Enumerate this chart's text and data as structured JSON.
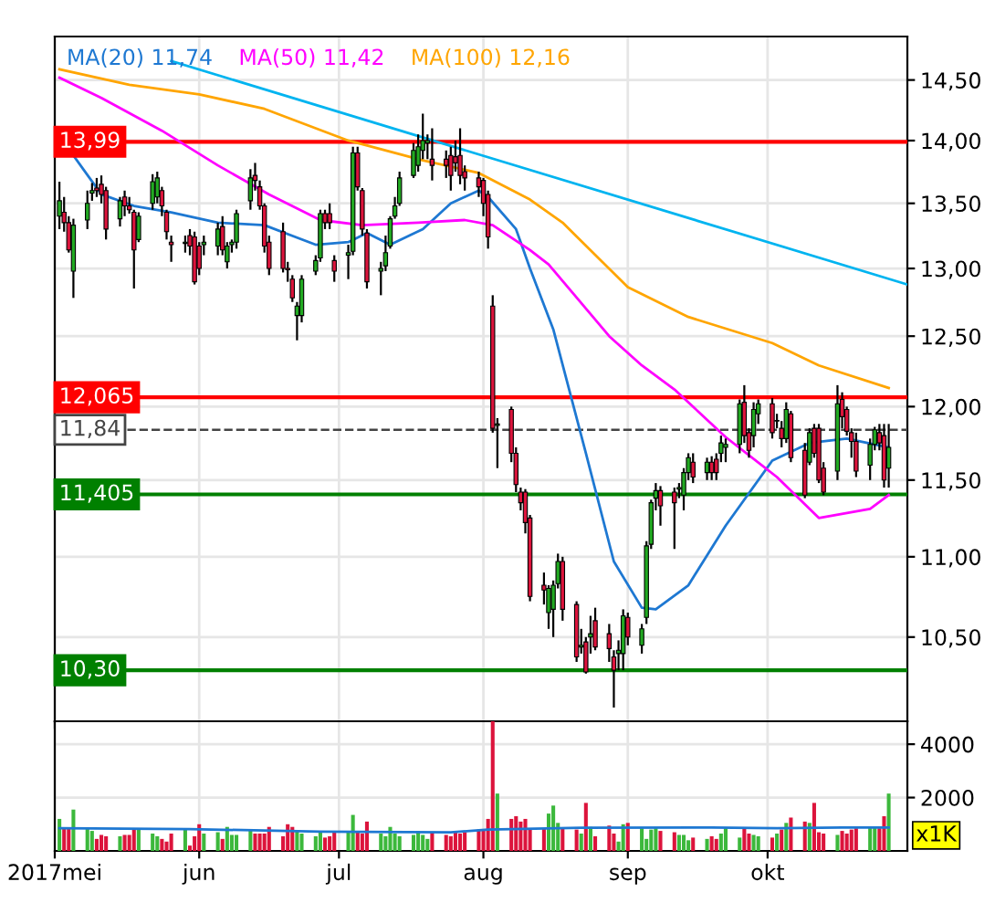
{
  "chart_data": [
    {
      "type": "candlestick",
      "log": true,
      "grid": true,
      "tick_labels": "y",
      "legend": "top left",
      "xlim": [
        "2017-05-01",
        "2017-10-31"
      ],
      "ylim": [
        10.0,
        14.87
      ],
      "xticks": [
        {
          "value": "2017-05-01",
          "label": null
        },
        {
          "value": "2017-06-01",
          "label": null
        },
        {
          "value": "2017-07-01",
          "label": null
        },
        {
          "value": "2017-08-01",
          "label": null
        },
        {
          "value": "2017-09-01",
          "label": null
        },
        {
          "value": "2017-10-01",
          "label": null
        }
      ],
      "yticks": [
        {
          "value": 10.5,
          "label": "10,50"
        },
        {
          "value": 11.0,
          "label": "11,00"
        },
        {
          "value": 11.5,
          "label": "11,50"
        },
        {
          "value": 12.0,
          "label": "12,00"
        },
        {
          "value": 12.5,
          "label": "12,50"
        },
        {
          "value": 13.0,
          "label": "13,00"
        },
        {
          "value": 13.5,
          "label": "13,50"
        },
        {
          "value": 14.0,
          "label": "14,00"
        },
        {
          "value": 14.5,
          "label": "14,50"
        }
      ],
      "x": [
        "2017-05-02",
        "2017-05-03",
        "2017-05-04",
        "2017-05-05",
        "2017-05-08",
        "2017-05-09",
        "2017-05-10",
        "2017-05-11",
        "2017-05-12",
        "2017-05-15",
        "2017-05-16",
        "2017-05-17",
        "2017-05-18",
        "2017-05-19",
        "2017-05-22",
        "2017-05-23",
        "2017-05-24",
        "2017-05-25",
        "2017-05-26",
        "2017-05-29",
        "2017-05-30",
        "2017-05-31",
        "2017-06-01",
        "2017-06-02",
        "2017-06-05",
        "2017-06-06",
        "2017-06-07",
        "2017-06-08",
        "2017-06-09",
        "2017-06-12",
        "2017-06-13",
        "2017-06-14",
        "2017-06-15",
        "2017-06-16",
        "2017-06-19",
        "2017-06-20",
        "2017-06-21",
        "2017-06-22",
        "2017-06-23",
        "2017-06-26",
        "2017-06-27",
        "2017-06-28",
        "2017-06-29",
        "2017-06-30",
        "2017-07-03",
        "2017-07-04",
        "2017-07-05",
        "2017-07-06",
        "2017-07-07",
        "2017-07-10",
        "2017-07-11",
        "2017-07-12",
        "2017-07-13",
        "2017-07-14",
        "2017-07-17",
        "2017-07-18",
        "2017-07-19",
        "2017-07-20",
        "2017-07-21",
        "2017-07-24",
        "2017-07-25",
        "2017-07-26",
        "2017-07-27",
        "2017-07-28",
        "2017-07-31",
        "2017-08-01",
        "2017-08-02",
        "2017-08-03",
        "2017-08-04",
        "2017-08-07",
        "2017-08-08",
        "2017-08-09",
        "2017-08-10",
        "2017-08-11",
        "2017-08-14",
        "2017-08-15",
        "2017-08-16",
        "2017-08-17",
        "2017-08-18",
        "2017-08-21",
        "2017-08-22",
        "2017-08-23",
        "2017-08-24",
        "2017-08-25",
        "2017-08-28",
        "2017-08-29",
        "2017-08-30",
        "2017-08-31",
        "2017-09-01",
        "2017-09-04",
        "2017-09-05",
        "2017-09-06",
        "2017-09-07",
        "2017-09-08",
        "2017-09-11",
        "2017-09-12",
        "2017-09-13",
        "2017-09-14",
        "2017-09-15",
        "2017-09-18",
        "2017-09-19",
        "2017-09-20",
        "2017-09-21",
        "2017-09-22",
        "2017-09-25",
        "2017-09-26",
        "2017-09-27",
        "2017-09-28",
        "2017-09-29",
        "2017-10-02",
        "2017-10-03",
        "2017-10-04",
        "2017-10-05",
        "2017-10-06",
        "2017-10-09",
        "2017-10-10",
        "2017-10-11",
        "2017-10-12",
        "2017-10-13",
        "2017-10-16",
        "2017-10-17",
        "2017-10-18",
        "2017-10-19",
        "2017-10-20",
        "2017-10-23",
        "2017-10-24",
        "2017-10-25",
        "2017-10-26",
        "2017-10-27"
      ],
      "ohlc": [
        [
          13.4,
          13.67,
          13.3,
          13.52
        ],
        [
          13.43,
          13.55,
          13.28,
          13.35
        ],
        [
          13.35,
          13.4,
          13.12,
          13.14
        ],
        [
          12.98,
          13.38,
          12.78,
          13.33
        ],
        [
          13.37,
          13.6,
          13.3,
          13.5
        ],
        [
          13.58,
          13.66,
          13.52,
          13.6
        ],
        [
          13.62,
          13.7,
          13.55,
          13.6
        ],
        [
          13.65,
          13.72,
          13.5,
          13.57
        ],
        [
          13.6,
          13.63,
          13.22,
          13.3
        ],
        [
          13.38,
          13.55,
          13.32,
          13.52
        ],
        [
          13.55,
          13.6,
          13.4,
          13.48
        ],
        [
          13.48,
          13.55,
          13.42,
          13.45
        ],
        [
          13.43,
          13.45,
          12.85,
          13.14
        ],
        [
          13.22,
          13.43,
          13.2,
          13.4
        ],
        [
          13.5,
          13.73,
          13.45,
          13.67
        ],
        [
          13.55,
          13.75,
          13.5,
          13.7
        ],
        [
          13.6,
          13.63,
          13.4,
          13.48
        ],
        [
          13.43,
          13.45,
          13.22,
          13.28
        ],
        [
          13.2,
          13.25,
          13.05,
          13.18
        ],
        [
          13.19,
          13.25,
          13.12,
          13.2
        ],
        [
          13.25,
          13.3,
          13.1,
          13.17
        ],
        [
          13.24,
          13.28,
          12.88,
          12.9
        ],
        [
          13.17,
          13.2,
          12.95,
          13.0
        ],
        [
          13.18,
          13.25,
          13.1,
          13.2
        ],
        [
          13.17,
          13.35,
          13.1,
          13.3
        ],
        [
          13.32,
          13.4,
          13.1,
          13.14
        ],
        [
          13.05,
          13.2,
          13.0,
          13.17
        ],
        [
          13.18,
          13.22,
          13.12,
          13.2
        ],
        [
          13.2,
          13.45,
          13.15,
          13.42
        ],
        [
          13.52,
          13.77,
          13.45,
          13.7
        ],
        [
          13.72,
          13.82,
          13.6,
          13.68
        ],
        [
          13.63,
          13.68,
          13.45,
          13.48
        ],
        [
          13.48,
          13.5,
          13.12,
          13.17
        ],
        [
          13.2,
          13.25,
          12.95,
          13.0
        ],
        [
          13.28,
          13.35,
          12.97,
          13.0
        ],
        [
          13.0,
          13.05,
          12.9,
          12.99
        ],
        [
          12.92,
          12.95,
          12.75,
          12.78
        ],
        [
          12.65,
          12.75,
          12.47,
          12.72
        ],
        [
          12.65,
          12.95,
          12.6,
          12.92
        ],
        [
          12.98,
          13.1,
          12.95,
          13.06
        ],
        [
          13.08,
          13.45,
          13.05,
          13.42
        ],
        [
          13.42,
          13.45,
          13.3,
          13.35
        ],
        [
          13.42,
          13.5,
          13.3,
          13.35
        ],
        [
          13.06,
          13.1,
          12.9,
          12.98
        ],
        [
          13.1,
          13.18,
          12.92,
          13.12
        ],
        [
          13.13,
          13.95,
          13.1,
          13.9
        ],
        [
          13.9,
          13.95,
          13.6,
          13.63
        ],
        [
          13.6,
          13.62,
          13.25,
          13.3
        ],
        [
          13.27,
          13.3,
          12.85,
          12.9
        ],
        [
          12.98,
          13.05,
          12.8,
          13.0
        ],
        [
          13.02,
          13.25,
          12.98,
          13.12
        ],
        [
          13.17,
          13.4,
          13.15,
          13.38
        ],
        [
          13.4,
          13.55,
          13.38,
          13.48
        ],
        [
          13.5,
          13.75,
          13.48,
          13.7
        ],
        [
          13.72,
          13.98,
          13.7,
          13.92
        ],
        [
          13.8,
          14.05,
          13.75,
          13.95
        ],
        [
          13.92,
          14.22,
          13.85,
          14.0
        ],
        [
          13.98,
          14.05,
          13.85,
          14.0
        ],
        [
          13.85,
          14.1,
          13.68,
          13.8
        ],
        [
          13.85,
          13.92,
          13.7,
          13.8
        ],
        [
          13.88,
          13.95,
          13.6,
          13.72
        ],
        [
          13.87,
          14.0,
          13.75,
          13.82
        ],
        [
          13.88,
          14.1,
          13.65,
          13.72
        ],
        [
          13.75,
          13.8,
          13.6,
          13.7
        ],
        [
          13.7,
          13.75,
          13.55,
          13.63
        ],
        [
          13.68,
          13.7,
          13.4,
          13.5
        ],
        [
          13.57,
          13.6,
          13.15,
          13.24
        ],
        [
          12.72,
          12.8,
          11.82,
          11.85
        ],
        [
          11.87,
          11.92,
          11.58,
          11.88
        ],
        [
          11.98,
          12.0,
          11.62,
          11.68
        ],
        [
          11.68,
          11.72,
          11.42,
          11.47
        ],
        [
          11.42,
          11.45,
          11.3,
          11.35
        ],
        [
          11.42,
          11.44,
          11.15,
          11.22
        ],
        [
          11.25,
          11.27,
          10.72,
          10.75
        ],
        [
          10.82,
          10.9,
          10.7,
          10.79
        ],
        [
          10.65,
          10.82,
          10.55,
          10.8
        ],
        [
          10.67,
          10.85,
          10.5,
          10.82
        ],
        [
          10.83,
          11.02,
          10.8,
          10.97
        ],
        [
          10.97,
          11.0,
          10.6,
          10.67
        ],
        [
          10.7,
          10.72,
          10.35,
          10.38
        ],
        [
          10.44,
          10.55,
          10.4,
          10.45
        ],
        [
          10.47,
          10.5,
          10.28,
          10.29
        ],
        [
          10.5,
          10.63,
          10.4,
          10.52
        ],
        [
          10.6,
          10.68,
          10.42,
          10.44
        ],
        [
          10.52,
          10.58,
          10.35,
          10.43
        ],
        [
          10.38,
          10.42,
          10.08,
          10.3
        ],
        [
          10.4,
          10.48,
          10.3,
          10.42
        ],
        [
          10.4,
          10.67,
          10.3,
          10.63
        ],
        [
          10.62,
          10.65,
          10.45,
          10.5
        ],
        [
          10.45,
          10.58,
          10.4,
          10.55
        ],
        [
          10.62,
          11.1,
          10.58,
          11.07
        ],
        [
          11.08,
          11.37,
          11.05,
          11.35
        ],
        [
          11.38,
          11.48,
          11.3,
          11.43
        ],
        [
          11.43,
          11.46,
          11.2,
          11.33
        ],
        [
          11.42,
          11.45,
          11.05,
          11.35
        ],
        [
          11.44,
          11.48,
          11.38,
          11.45
        ],
        [
          11.4,
          11.58,
          11.3,
          11.55
        ],
        [
          11.55,
          11.68,
          11.5,
          11.65
        ],
        [
          11.62,
          11.68,
          11.48,
          11.52
        ],
        [
          11.55,
          11.65,
          11.5,
          11.62
        ],
        [
          11.62,
          11.66,
          11.5,
          11.55
        ],
        [
          11.64,
          11.68,
          11.5,
          11.55
        ],
        [
          11.68,
          11.8,
          11.62,
          11.75
        ],
        [
          11.72,
          11.78,
          11.62,
          11.74
        ],
        [
          11.74,
          12.05,
          11.68,
          12.02
        ],
        [
          12.03,
          12.15,
          11.75,
          11.8
        ],
        [
          11.82,
          11.85,
          11.65,
          11.7
        ],
        [
          11.8,
          12.03,
          11.72,
          11.98
        ],
        [
          11.95,
          12.05,
          11.88,
          12.02
        ],
        [
          12.02,
          12.06,
          11.78,
          11.82
        ],
        [
          11.9,
          11.95,
          11.85,
          11.9
        ],
        [
          11.85,
          11.9,
          11.72,
          11.78
        ],
        [
          11.78,
          12.03,
          11.75,
          11.98
        ],
        [
          11.95,
          11.97,
          11.62,
          11.65
        ],
        [
          11.7,
          11.75,
          11.38,
          11.4
        ],
        [
          11.62,
          11.85,
          11.6,
          11.82
        ],
        [
          11.85,
          11.88,
          11.65,
          11.68
        ],
        [
          11.85,
          11.88,
          11.48,
          11.5
        ],
        [
          11.58,
          11.62,
          11.4,
          11.42
        ],
        [
          11.56,
          12.15,
          11.5,
          12.02
        ],
        [
          12.05,
          12.1,
          11.85,
          11.93
        ],
        [
          11.98,
          12.0,
          11.8,
          11.83
        ],
        [
          11.82,
          11.85,
          11.65,
          11.76
        ],
        [
          11.76,
          11.82,
          11.52,
          11.56
        ],
        [
          11.6,
          11.78,
          11.5,
          11.74
        ],
        [
          11.74,
          11.86,
          11.7,
          11.84
        ],
        [
          11.82,
          11.88,
          11.7,
          11.75
        ],
        [
          11.8,
          11.88,
          11.45,
          11.5
        ],
        [
          11.58,
          11.88,
          11.45,
          11.72
        ]
      ],
      "series": [
        {
          "type": "line",
          "name": "MA(20) 11,74",
          "color": "#1e78d2",
          "x": [
            "2017-05-05",
            "2017-05-11",
            "2017-05-18",
            "2017-05-26",
            "2017-06-05",
            "2017-06-15",
            "2017-06-26",
            "2017-07-03",
            "2017-07-07",
            "2017-07-12",
            "2017-07-19",
            "2017-07-25",
            "2017-07-31",
            "2017-08-02",
            "2017-08-08",
            "2017-08-11",
            "2017-08-16",
            "2017-08-23",
            "2017-08-29",
            "2017-09-04",
            "2017-09-07",
            "2017-09-14",
            "2017-09-22",
            "2017-10-02",
            "2017-10-10",
            "2017-10-18",
            "2017-10-27"
          ],
          "values": [
            13.88,
            13.57,
            13.48,
            13.43,
            13.35,
            13.33,
            13.18,
            13.2,
            13.27,
            13.18,
            13.3,
            13.5,
            13.6,
            13.55,
            13.3,
            13.0,
            12.55,
            11.68,
            10.97,
            10.68,
            10.67,
            10.82,
            11.2,
            11.63,
            11.75,
            11.78,
            11.72
          ]
        },
        {
          "type": "line",
          "name": "MA(50) 11,42",
          "color": "#ff00ff",
          "x": [
            "2017-05-02",
            "2017-05-11",
            "2017-05-24",
            "2017-06-05",
            "2017-06-16",
            "2017-06-27",
            "2017-07-06",
            "2017-07-18",
            "2017-07-28",
            "2017-08-03",
            "2017-08-11",
            "2017-08-15",
            "2017-08-28",
            "2017-09-04",
            "2017-09-11",
            "2017-09-22",
            "2017-10-03",
            "2017-10-12",
            "2017-10-23",
            "2017-10-27"
          ],
          "values": [
            14.52,
            14.35,
            14.08,
            13.8,
            13.57,
            13.37,
            13.33,
            13.35,
            13.37,
            13.33,
            13.14,
            13.03,
            12.5,
            12.29,
            12.12,
            11.79,
            11.52,
            11.25,
            11.31,
            11.4
          ]
        },
        {
          "type": "line",
          "name": "MA(100) 12,16",
          "color": "#ffa500",
          "x": [
            "2017-05-02",
            "2017-05-17",
            "2017-06-01",
            "2017-06-15",
            "2017-07-03",
            "2017-07-19",
            "2017-07-31",
            "2017-08-11",
            "2017-08-18",
            "2017-09-01",
            "2017-09-14",
            "2017-10-02",
            "2017-10-12",
            "2017-10-27"
          ],
          "values": [
            14.59,
            14.46,
            14.38,
            14.26,
            14.0,
            13.84,
            13.74,
            13.53,
            13.35,
            12.86,
            12.64,
            12.45,
            12.29,
            12.13
          ]
        },
        {
          "type": "line",
          "color": "#00b4f0",
          "x": [
            "2017-05-26",
            "2017-10-31"
          ],
          "values": [
            14.66,
            12.88
          ]
        }
      ],
      "ref_lines": [
        {
          "axis": "y",
          "value": 13.99,
          "label": "13,99",
          "color": "#ff0000"
        },
        {
          "axis": "y",
          "value": 12.065,
          "label": "12,065",
          "color": "#ff0000"
        },
        {
          "axis": "y",
          "value": 11.84,
          "label": "11,84",
          "color": "#444444",
          "line_style": "dashed"
        },
        {
          "axis": "y",
          "value": 11.405,
          "label": "11,405",
          "color": "#008000"
        },
        {
          "axis": "y",
          "value": 10.3,
          "label": "10,30",
          "color": "#008000"
        }
      ]
    },
    {
      "type": "bar",
      "grid": true,
      "xlim": [
        "2017-05-01",
        "2017-10-31"
      ],
      "ylim": [
        0,
        4860
      ],
      "xticks": [
        {
          "value": "2017-05-01",
          "label": "2017mei"
        },
        {
          "value": "2017-06-01",
          "label": "jun"
        },
        {
          "value": "2017-07-01",
          "label": "jul"
        },
        {
          "value": "2017-08-01",
          "label": "aug"
        },
        {
          "value": "2017-09-01",
          "label": "sep"
        },
        {
          "value": "2017-10-01",
          "label": "okt"
        }
      ],
      "yticks": [
        2000,
        4000
      ],
      "annotations": [
        "x1K"
      ],
      "x": [
        "2017-05-02",
        "2017-05-03",
        "2017-05-04",
        "2017-05-05",
        "2017-05-08",
        "2017-05-09",
        "2017-05-10",
        "2017-05-11",
        "2017-05-12",
        "2017-05-15",
        "2017-05-16",
        "2017-05-17",
        "2017-05-18",
        "2017-05-19",
        "2017-05-22",
        "2017-05-23",
        "2017-05-24",
        "2017-05-25",
        "2017-05-26",
        "2017-05-29",
        "2017-05-30",
        "2017-05-31",
        "2017-06-01",
        "2017-06-02",
        "2017-06-05",
        "2017-06-06",
        "2017-06-07",
        "2017-06-08",
        "2017-06-09",
        "2017-06-12",
        "2017-06-13",
        "2017-06-14",
        "2017-06-15",
        "2017-06-16",
        "2017-06-19",
        "2017-06-20",
        "2017-06-21",
        "2017-06-22",
        "2017-06-23",
        "2017-06-26",
        "2017-06-27",
        "2017-06-28",
        "2017-06-29",
        "2017-06-30",
        "2017-07-03",
        "2017-07-04",
        "2017-07-05",
        "2017-07-06",
        "2017-07-07",
        "2017-07-10",
        "2017-07-11",
        "2017-07-12",
        "2017-07-13",
        "2017-07-14",
        "2017-07-17",
        "2017-07-18",
        "2017-07-19",
        "2017-07-20",
        "2017-07-21",
        "2017-07-24",
        "2017-07-25",
        "2017-07-26",
        "2017-07-27",
        "2017-07-28",
        "2017-07-31",
        "2017-08-01",
        "2017-08-02",
        "2017-08-03",
        "2017-08-04",
        "2017-08-07",
        "2017-08-08",
        "2017-08-09",
        "2017-08-10",
        "2017-08-11",
        "2017-08-14",
        "2017-08-15",
        "2017-08-16",
        "2017-08-17",
        "2017-08-18",
        "2017-08-21",
        "2017-08-22",
        "2017-08-23",
        "2017-08-24",
        "2017-08-25",
        "2017-08-28",
        "2017-08-29",
        "2017-08-30",
        "2017-08-31",
        "2017-09-01",
        "2017-09-04",
        "2017-09-05",
        "2017-09-06",
        "2017-09-07",
        "2017-09-08",
        "2017-09-11",
        "2017-09-12",
        "2017-09-13",
        "2017-09-14",
        "2017-09-15",
        "2017-09-18",
        "2017-09-19",
        "2017-09-20",
        "2017-09-21",
        "2017-09-22",
        "2017-09-25",
        "2017-09-26",
        "2017-09-27",
        "2017-09-28",
        "2017-09-29",
        "2017-10-02",
        "2017-10-03",
        "2017-10-04",
        "2017-10-05",
        "2017-10-06",
        "2017-10-09",
        "2017-10-10",
        "2017-10-11",
        "2017-10-12",
        "2017-10-13",
        "2017-10-16",
        "2017-10-17",
        "2017-10-18",
        "2017-10-19",
        "2017-10-20",
        "2017-10-23",
        "2017-10-24",
        "2017-10-25",
        "2017-10-26",
        "2017-10-27"
      ],
      "values": [
        1200,
        850,
        850,
        1550,
        850,
        750,
        450,
        600,
        550,
        550,
        600,
        600,
        850,
        800,
        650,
        550,
        450,
        350,
        650,
        800,
        200,
        550,
        1000,
        650,
        700,
        450,
        900,
        600,
        600,
        800,
        650,
        650,
        650,
        900,
        550,
        1000,
        900,
        750,
        650,
        550,
        700,
        500,
        550,
        750,
        700,
        1350,
        700,
        650,
        1100,
        650,
        550,
        900,
        650,
        550,
        600,
        750,
        600,
        450,
        700,
        600,
        550,
        700,
        650,
        700,
        800,
        800,
        1200,
        4860,
        2150,
        1200,
        1300,
        1100,
        1200,
        850,
        850,
        1400,
        1700,
        1050,
        850,
        800,
        650,
        1800,
        900,
        550,
        950,
        650,
        350,
        1000,
        1050,
        850,
        450,
        800,
        850,
        750,
        700,
        600,
        600,
        400,
        500,
        450,
        550,
        450,
        650,
        850,
        500,
        850,
        650,
        600,
        550,
        500,
        650,
        800,
        1050,
        1250,
        1100,
        1050,
        1800,
        700,
        650,
        600,
        750,
        650,
        800,
        850,
        900,
        900,
        850,
        1300,
        2150
      ],
      "colors": [
        "#3cb83c",
        "#dc143c",
        "#dc143c",
        "#3cb83c",
        "#3cb83c",
        "#3cb83c",
        "#dc143c",
        "#dc143c",
        "#dc143c",
        "#3cb83c",
        "#dc143c",
        "#dc143c",
        "#dc143c",
        "#3cb83c",
        "#3cb83c",
        "#3cb83c",
        "#dc143c",
        "#dc143c",
        "#dc143c",
        "#3cb83c",
        "#dc143c",
        "#dc143c",
        "#dc143c",
        "#3cb83c",
        "#3cb83c",
        "#dc143c",
        "#3cb83c",
        "#3cb83c",
        "#3cb83c",
        "#3cb83c",
        "#dc143c",
        "#dc143c",
        "#dc143c",
        "#dc143c",
        "#dc143c",
        "#dc143c",
        "#dc143c",
        "#3cb83c",
        "#3cb83c",
        "#3cb83c",
        "#3cb83c",
        "#dc143c",
        "#dc143c",
        "#dc143c",
        "#3cb83c",
        "#3cb83c",
        "#dc143c",
        "#dc143c",
        "#dc143c",
        "#3cb83c",
        "#3cb83c",
        "#3cb83c",
        "#3cb83c",
        "#3cb83c",
        "#3cb83c",
        "#3cb83c",
        "#3cb83c",
        "#3cb83c",
        "#dc143c",
        "#dc143c",
        "#dc143c",
        "#dc143c",
        "#dc143c",
        "#dc143c",
        "#dc143c",
        "#dc143c",
        "#dc143c",
        "#dc143c",
        "#3cb83c",
        "#dc143c",
        "#dc143c",
        "#dc143c",
        "#dc143c",
        "#dc143c",
        "#dc143c",
        "#3cb83c",
        "#3cb83c",
        "#3cb83c",
        "#dc143c",
        "#dc143c",
        "#3cb83c",
        "#dc143c",
        "#3cb83c",
        "#dc143c",
        "#dc143c",
        "#dc143c",
        "#3cb83c",
        "#3cb83c",
        "#dc143c",
        "#3cb83c",
        "#3cb83c",
        "#3cb83c",
        "#3cb83c",
        "#dc143c",
        "#dc143c",
        "#3cb83c",
        "#3cb83c",
        "#3cb83c",
        "#dc143c",
        "#3cb83c",
        "#dc143c",
        "#dc143c",
        "#3cb83c",
        "#3cb83c",
        "#3cb83c",
        "#dc143c",
        "#dc143c",
        "#3cb83c",
        "#3cb83c",
        "#dc143c",
        "#3cb83c",
        "#dc143c",
        "#3cb83c",
        "#dc143c",
        "#dc143c",
        "#3cb83c",
        "#dc143c",
        "#dc143c",
        "#dc143c",
        "#3cb83c",
        "#dc143c",
        "#dc143c",
        "#dc143c",
        "#dc143c",
        "#3cb83c",
        "#3cb83c",
        "#dc143c",
        "#dc143c",
        "#3cb83c"
      ],
      "series": [
        {
          "type": "line",
          "color": "#1e78d2",
          "x": [
            "2017-05-02",
            "2017-05-30",
            "2017-06-27",
            "2017-07-25",
            "2017-08-02",
            "2017-08-22",
            "2017-09-19",
            "2017-10-03",
            "2017-10-17",
            "2017-10-27"
          ],
          "values": [
            850,
            820,
            720,
            700,
            800,
            870,
            880,
            850,
            880,
            880
          ]
        }
      ]
    }
  ]
}
